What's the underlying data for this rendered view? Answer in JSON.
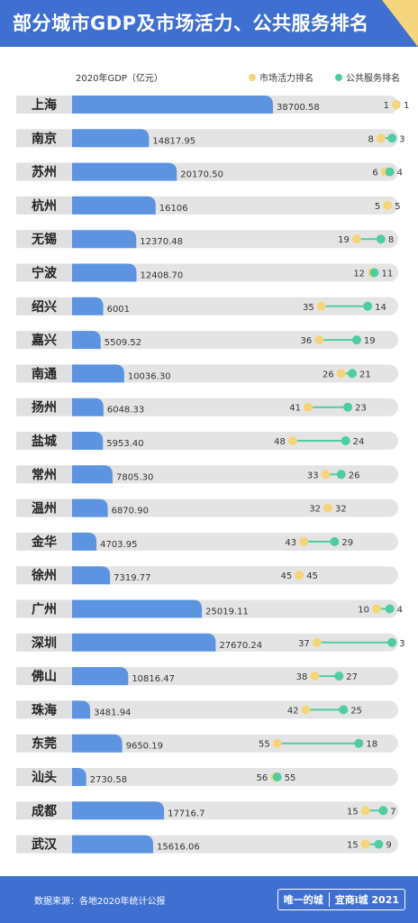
{
  "title": "部分城市GDP及市场活力、公共服务排名",
  "gdp_label": "2020年GDP（亿元）",
  "legend": {
    "market": "市场活力排名",
    "public": "公共服务排名"
  },
  "colors": {
    "header": "#3f6fd0",
    "bar": "#5c94e2",
    "track": "#e4e4e4",
    "label_box": "#e0e0e0",
    "market": "#f6d479",
    "public": "#4ecda0",
    "corner": "#f5d57e"
  },
  "footer": {
    "source": "数据来源：各地2020年统计公报",
    "brand_left": "唯一的城",
    "brand_right": "宜商i城 2021"
  },
  "chart_data": {
    "type": "bar",
    "categories": [
      "上海",
      "南京",
      "苏州",
      "杭州",
      "无锡",
      "宁波",
      "绍兴",
      "嘉兴",
      "南通",
      "扬州",
      "盐城",
      "常州",
      "温州",
      "金华",
      "徐州",
      "广州",
      "深圳",
      "佛山",
      "珠海",
      "东莞",
      "汕头",
      "成都",
      "武汉"
    ],
    "gdp_labels": [
      "38700.58",
      "14817.95",
      "20170.50",
      "16106",
      "12370.48",
      "12408.70",
      "6001",
      "5509.52",
      "10036.30",
      "6048.33",
      "5953.40",
      "7805.30",
      "6870.90",
      "4703.95",
      "7319.77",
      "25019.11",
      "27670.24",
      "10816.47",
      "3481.94",
      "9650.19",
      "2730.58",
      "17716.7",
      "15616.06"
    ],
    "series": [
      {
        "name": "2020年GDP（亿元）",
        "values": [
          38700.58,
          14817.95,
          20170.5,
          16106,
          12370.48,
          12408.7,
          6001,
          5509.52,
          10036.3,
          6048.33,
          5953.4,
          7805.3,
          6870.9,
          4703.95,
          7319.77,
          25019.11,
          27670.24,
          10816.47,
          3481.94,
          9650.19,
          2730.58,
          17716.7,
          15616.06
        ]
      },
      {
        "name": "市场活力排名",
        "values": [
          1,
          8,
          6,
          5,
          19,
          12,
          35,
          36,
          26,
          41,
          48,
          33,
          32,
          43,
          45,
          10,
          37,
          38,
          42,
          55,
          56,
          15,
          15
        ]
      },
      {
        "name": "公共服务排名",
        "values": [
          1,
          3,
          4,
          5,
          8,
          11,
          14,
          19,
          21,
          23,
          24,
          26,
          32,
          29,
          45,
          4,
          3,
          27,
          25,
          18,
          55,
          7,
          9
        ]
      }
    ]
  }
}
